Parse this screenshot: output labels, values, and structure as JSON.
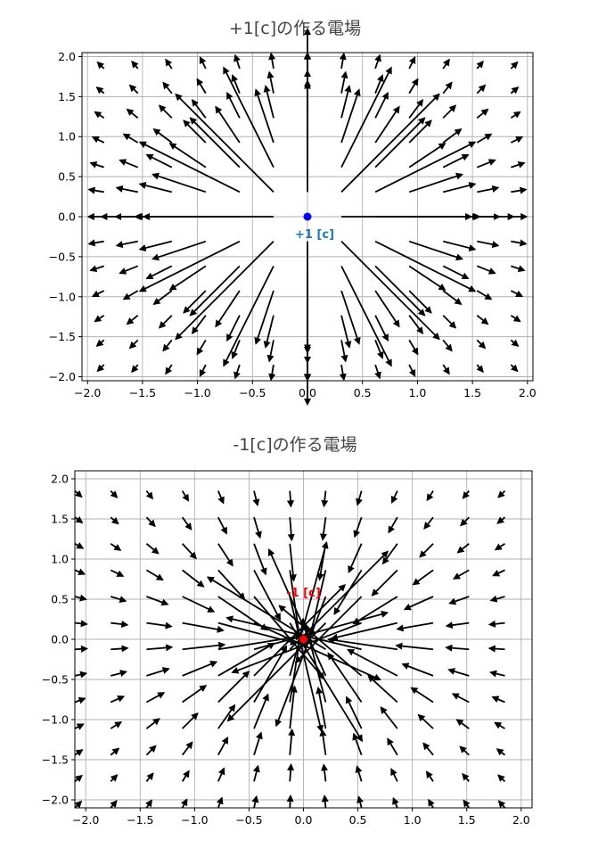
{
  "chart_data": [
    {
      "type": "quiver",
      "title": "+1[c]の作る電場",
      "xlabel": "",
      "ylabel": "",
      "xlim": [
        -2.05,
        2.05
      ],
      "ylim": [
        -2.05,
        2.05
      ],
      "grid": true,
      "xticks": [
        -2.0,
        -1.5,
        -1.0,
        -0.5,
        0.0,
        0.5,
        1.0,
        1.5,
        2.0
      ],
      "yticks": [
        -2.0,
        -1.5,
        -1.0,
        -0.5,
        0.0,
        0.5,
        1.0,
        1.5,
        2.0
      ],
      "xtick_labels": [
        "−2.0",
        "−1.5",
        "−1.0",
        "−0.5",
        "0.0",
        "0.5",
        "1.0",
        "1.5",
        "2.0"
      ],
      "ytick_labels": [
        "2.0",
        "1.5",
        "1.0",
        "0.5",
        "0.0",
        "−0.5",
        "−1.0",
        "−1.5",
        "−2.0"
      ],
      "field": {
        "grid_min": -1.85,
        "grid_max": 1.85,
        "grid_points": 13,
        "direction": "outward",
        "falloff": "inverse-square"
      },
      "charge": {
        "x": 0.0,
        "y": 0.0,
        "value": 1,
        "label": "+1 [c]",
        "color": "#0000ff",
        "label_color": "#1f77b4"
      }
    },
    {
      "type": "quiver",
      "title": "-1[c]の作る電場",
      "xlabel": "",
      "ylabel": "",
      "xlim": [
        -2.1,
        2.1
      ],
      "ylim": [
        -2.1,
        2.1
      ],
      "grid": true,
      "xticks": [
        -2.0,
        -1.5,
        -1.0,
        -0.5,
        0.0,
        0.5,
        1.0,
        1.5,
        2.0
      ],
      "yticks": [
        -2.0,
        -1.5,
        -1.0,
        -0.5,
        0.0,
        0.5,
        1.0,
        1.5,
        2.0
      ],
      "xtick_labels": [
        "−2.0",
        "−1.5",
        "−1.0",
        "−0.5",
        "0.0",
        "0.5",
        "1.0",
        "1.5",
        "2.0"
      ],
      "ytick_labels": [
        "2.0",
        "1.5",
        "1.0",
        "0.5",
        "0.0",
        "−0.5",
        "−1.0",
        "−1.5",
        "−2.0"
      ],
      "field": {
        "grid_min": -2.1,
        "grid_max": 1.85,
        "grid_points": 13,
        "direction": "inward",
        "falloff": "inverse-square"
      },
      "charge": {
        "x": 0.0,
        "y": 0.0,
        "value": -1,
        "label": "-1 [c]",
        "color": "#ff0000",
        "label_color": "#ff0000"
      }
    }
  ]
}
